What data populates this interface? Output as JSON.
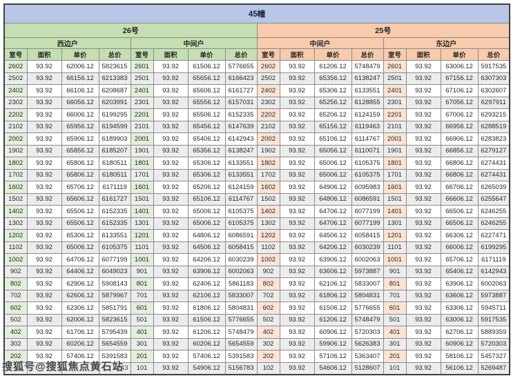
{
  "title": "45幢",
  "watermark": "搜狐号@搜狐焦点黄石站",
  "columns": [
    "室号",
    "面积",
    "单价",
    "总价"
  ],
  "colors": {
    "title_bar": "#b8c7e7",
    "building_26_header": "#c5dfb3",
    "building_26_room_cell": "#e2efd9",
    "building_25_header": "#f7cbac",
    "building_25_room_cell": "#fce4d5",
    "stripe_row": "#ececec"
  },
  "sections": [
    {
      "building": "26号",
      "units": [
        {
          "name": "西边户",
          "rows": [
            [
              "2602",
              "93.92",
              "62006.12",
              "5823615"
            ],
            [
              "2502",
              "93.92",
              "66156.12",
              "6213383"
            ],
            [
              "2402",
              "93.92",
              "66106.12",
              "6208687"
            ],
            [
              "2302",
              "93.92",
              "66056.12",
              "6203991"
            ],
            [
              "2202",
              "93.92",
              "66006.12",
              "6199295"
            ],
            [
              "2102",
              "93.92",
              "65956.12",
              "6194599"
            ],
            [
              "2002",
              "93.92",
              "65906.12",
              "6189903"
            ],
            [
              "1902",
              "93.92",
              "65856.12",
              "6185207"
            ],
            [
              "1802",
              "93.92",
              "65806.12",
              "6180511"
            ],
            [
              "1702",
              "93.92",
              "65806.12",
              "6180511"
            ],
            [
              "1602",
              "93.92",
              "65706.12",
              "6171119"
            ],
            [
              "1502",
              "93.92",
              "65606.12",
              "6161727"
            ],
            [
              "1402",
              "93.92",
              "65506.12",
              "6152335"
            ],
            [
              "1302",
              "93.92",
              "65506.12",
              "6152335"
            ],
            [
              "1202",
              "93.92",
              "65306.12",
              "6133551"
            ],
            [
              "1102",
              "93.92",
              "65006.12",
              "6105375"
            ],
            [
              "1002",
              "93.92",
              "64706.12",
              "6077199"
            ],
            [
              "902",
              "93.92",
              "64406.12",
              "6049023"
            ],
            [
              "802",
              "93.92",
              "62906.12",
              "5908143"
            ],
            [
              "702",
              "93.92",
              "62606.12",
              "5879967"
            ],
            [
              "602",
              "93.92",
              "62306.12",
              "5851791"
            ],
            [
              "502",
              "93.92",
              "62006.12",
              "5823615"
            ],
            [
              "402",
              "93.92",
              "61706.12",
              "5795439"
            ],
            [
              "302",
              "93.92",
              "60206.12",
              "5654559"
            ],
            [
              "202",
              "93.92",
              "57406.12",
              "5391583"
            ],
            [
              "",
              "",
              "",
              "743"
            ]
          ]
        },
        {
          "name": "中间户",
          "rows": [
            [
              "2601",
              "93.92",
              "61506.12",
              "5776655"
            ],
            [
              "2501",
              "93.92",
              "65656.12",
              "6166423"
            ],
            [
              "2401",
              "93.92",
              "65606.12",
              "6161727"
            ],
            [
              "2301",
              "93.92",
              "65556.12",
              "6157031"
            ],
            [
              "2201",
              "93.92",
              "65506.12",
              "6152335"
            ],
            [
              "2101",
              "93.92",
              "65456.12",
              "6147639"
            ],
            [
              "2001",
              "93.92",
              "65406.12",
              "6142943"
            ],
            [
              "1901",
              "93.92",
              "65356.12",
              "6138247"
            ],
            [
              "1801",
              "93.92",
              "65306.12",
              "6133551"
            ],
            [
              "1701",
              "93.92",
              "65306.12",
              "6133551"
            ],
            [
              "1601",
              "93.92",
              "65206.12",
              "6124159"
            ],
            [
              "1501",
              "93.92",
              "65106.12",
              "6114767"
            ],
            [
              "1401",
              "93.92",
              "65006.12",
              "6105375"
            ],
            [
              "1301",
              "93.92",
              "65006.12",
              "6105375"
            ],
            [
              "1201",
              "93.92",
              "64806.12",
              "6086591"
            ],
            [
              "1101",
              "93.92",
              "64506.12",
              "6058415"
            ],
            [
              "1001",
              "93.92",
              "64206.12",
              "6030239"
            ],
            [
              "901",
              "93.92",
              "63906.12",
              "6002063"
            ],
            [
              "801",
              "93.92",
              "62406.12",
              "5861183"
            ],
            [
              "701",
              "93.92",
              "62106.12",
              "5833007"
            ],
            [
              "601",
              "93.92",
              "61806.12",
              "5804831"
            ],
            [
              "501",
              "93.92",
              "61506.12",
              "5776655"
            ],
            [
              "401",
              "93.92",
              "61206.12",
              "5748479"
            ],
            [
              "301",
              "93.92",
              "60206.12",
              "5654559"
            ],
            [
              "201",
              "93.92",
              "57406.12",
              "5391583"
            ],
            [
              "101",
              "93.92",
              "54906.12",
              "5156783"
            ]
          ]
        }
      ]
    },
    {
      "building": "25号",
      "units": [
        {
          "name": "中间户",
          "rows": [
            [
              "2602",
              "93.92",
              "61206.12",
              "5748479"
            ],
            [
              "2502",
              "93.92",
              "65356.12",
              "6138247"
            ],
            [
              "2402",
              "93.92",
              "65306.12",
              "6133551"
            ],
            [
              "2302",
              "93.92",
              "65256.12",
              "6128855"
            ],
            [
              "2202",
              "93.92",
              "65206.12",
              "6124159"
            ],
            [
              "2102",
              "93.92",
              "65156.12",
              "6119463"
            ],
            [
              "2002",
              "93.92",
              "65106.12",
              "6114767"
            ],
            [
              "1902",
              "93.92",
              "65056.12",
              "6110071"
            ],
            [
              "1802",
              "93.92",
              "65006.12",
              "6105375"
            ],
            [
              "1702",
              "93.92",
              "65006.12",
              "6105375"
            ],
            [
              "1602",
              "93.92",
              "64906.12",
              "6095983"
            ],
            [
              "1502",
              "93.92",
              "64806.12",
              "6086591"
            ],
            [
              "1402",
              "93.92",
              "64706.12",
              "6077199"
            ],
            [
              "1302",
              "93.92",
              "64706.12",
              "6077199"
            ],
            [
              "1202",
              "93.92",
              "64506.12",
              "6058415"
            ],
            [
              "1102",
              "93.92",
              "64206.12",
              "6030239"
            ],
            [
              "1002",
              "93.92",
              "63906.12",
              "6002063"
            ],
            [
              "902",
              "93.92",
              "63606.12",
              "5973887"
            ],
            [
              "802",
              "93.92",
              "62106.12",
              "5833007"
            ],
            [
              "702",
              "93.92",
              "61806.12",
              "5804831"
            ],
            [
              "602",
              "93.92",
              "61506.12",
              "5776655"
            ],
            [
              "502",
              "93.92",
              "61206.12",
              "5748479"
            ],
            [
              "402",
              "93.92",
              "60906.12",
              "5720303"
            ],
            [
              "302",
              "93.92",
              "59906.12",
              "5626383"
            ],
            [
              "202",
              "93.92",
              "57106.12",
              "5363407"
            ],
            [
              "102",
              "93.92",
              "54606.12",
              "5128607"
            ]
          ]
        },
        {
          "name": "东边户",
          "rows": [
            [
              "2601",
              "93.92",
              "63006.12",
              "5917535"
            ],
            [
              "2501",
              "93.92",
              "67156.12",
              "6307303"
            ],
            [
              "2401",
              "93.92",
              "67106.12",
              "6302607"
            ],
            [
              "2301",
              "93.92",
              "67056.12",
              "6297911"
            ],
            [
              "2201",
              "93.92",
              "67006.12",
              "6293215"
            ],
            [
              "2101",
              "93.92",
              "66956.12",
              "6288519"
            ],
            [
              "2001",
              "93.92",
              "66906.12",
              "6283823"
            ],
            [
              "1901",
              "93.92",
              "66856.12",
              "6279127"
            ],
            [
              "1801",
              "93.92",
              "66806.12",
              "6274431"
            ],
            [
              "1701",
              "93.92",
              "66806.12",
              "6274431"
            ],
            [
              "1601",
              "93.92",
              "66706.12",
              "6265039"
            ],
            [
              "1501",
              "93.92",
              "66606.12",
              "6255647"
            ],
            [
              "1401",
              "93.92",
              "66506.12",
              "6246255"
            ],
            [
              "1301",
              "93.92",
              "66506.12",
              "6246255"
            ],
            [
              "1201",
              "93.92",
              "66306.12",
              "6227471"
            ],
            [
              "1101",
              "93.92",
              "66006.12",
              "6199295"
            ],
            [
              "1001",
              "93.92",
              "65706.12",
              "6171119"
            ],
            [
              "901",
              "93.92",
              "65406.12",
              "6142943"
            ],
            [
              "801",
              "93.92",
              "63906.12",
              "6002063"
            ],
            [
              "701",
              "93.92",
              "63606.12",
              "5973887"
            ],
            [
              "601",
              "93.92",
              "63306.12",
              "5945711"
            ],
            [
              "501",
              "93.92",
              "63006.12",
              "5917535"
            ],
            [
              "401",
              "93.92",
              "62706.12",
              "5889359"
            ],
            [
              "301",
              "93.92",
              "60906.12",
              "5720303"
            ],
            [
              "201",
              "93.92",
              "58106.12",
              "5457327"
            ],
            [
              "101",
              "93.92",
              "56106.12",
              "5269487"
            ]
          ]
        }
      ]
    }
  ]
}
